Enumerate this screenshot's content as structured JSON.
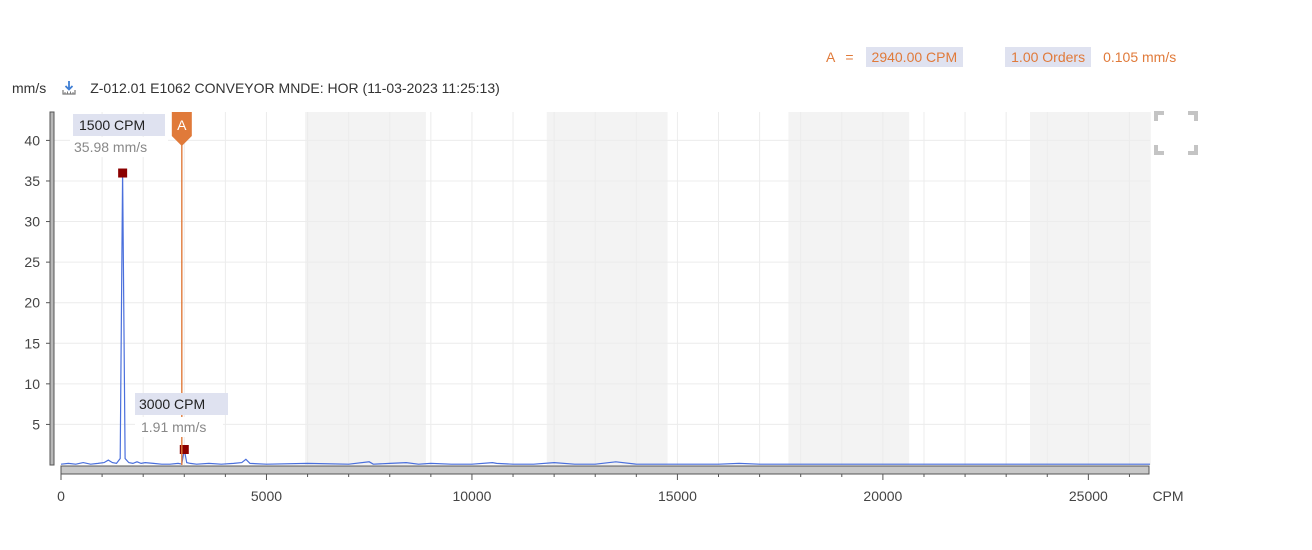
{
  "readout": {
    "cursor_label": "A",
    "equals": "=",
    "frequency": "2940.00 CPM",
    "orders": "1.00 Orders",
    "amplitude": "0.105 mm/s"
  },
  "header": {
    "unit": "mm/s",
    "download_icon": "download-chart-icon",
    "title": "Z-012.01  E1062 CONVEYOR MNDE: HOR (11-03-2023 11:25:13)"
  },
  "fullscreen_icon": "fullscreen-icon",
  "colors": {
    "series": "#4a6fdc",
    "cursor": "#e07a3a",
    "peak_marker": "#8b0000",
    "band": "#f3f3f3",
    "label_bg": "#dfe2f0"
  },
  "chart_data": {
    "type": "line",
    "xlabel": "CPM",
    "ylabel": "mm/s",
    "xlim": [
      0,
      26500
    ],
    "ylim": [
      0,
      43.5
    ],
    "x_ticks": [
      0,
      5000,
      10000,
      15000,
      20000,
      25000
    ],
    "y_ticks": [
      5,
      10,
      15,
      20,
      25,
      30,
      35,
      40
    ],
    "grid": true,
    "shaded_bands": [
      [
        5940,
        8880
      ],
      [
        11820,
        14760
      ],
      [
        17700,
        20640
      ],
      [
        23580,
        26520
      ]
    ],
    "series": [
      {
        "x": [
          0,
          180,
          360,
          540,
          720,
          900,
          1050,
          1150,
          1250,
          1350,
          1440,
          1500,
          1560,
          1650,
          1750,
          1850,
          1950,
          2050,
          2250,
          2450,
          2650,
          2850,
          2940,
          3000,
          3060,
          3150,
          3300,
          3600,
          3900,
          4200,
          4400,
          4500,
          4600,
          5000,
          6000,
          7000,
          7500,
          7600,
          8000,
          8400,
          8700,
          9000,
          9500,
          10000,
          10500,
          10600,
          11000,
          11500,
          12000,
          12500,
          13000,
          13500,
          14000,
          15000,
          16000,
          16500,
          17000,
          18000,
          19000,
          19500,
          20000,
          21000,
          22000,
          23000,
          24000,
          25000,
          26000,
          26500
        ],
        "y": [
          0.1,
          0.2,
          0.1,
          0.3,
          0.1,
          0.2,
          0.3,
          0.6,
          0.3,
          0.2,
          0.8,
          35.98,
          0.8,
          0.3,
          0.2,
          0.4,
          0.2,
          0.3,
          0.2,
          0.1,
          0.1,
          0.2,
          0.105,
          1.91,
          0.3,
          0.2,
          0.1,
          0.2,
          0.1,
          0.2,
          0.3,
          0.7,
          0.2,
          0.1,
          0.2,
          0.1,
          0.4,
          0.1,
          0.2,
          0.3,
          0.1,
          0.2,
          0.1,
          0.1,
          0.3,
          0.2,
          0.1,
          0.1,
          0.3,
          0.1,
          0.1,
          0.4,
          0.1,
          0.1,
          0.1,
          0.2,
          0.1,
          0.1,
          0.1,
          0.1,
          0.1,
          0.1,
          0.1,
          0.1,
          0.1,
          0.1,
          0.1,
          0.1
        ]
      }
    ],
    "peaks": [
      {
        "x": 1500,
        "y": 35.98,
        "freq_label": "1500 CPM",
        "amp_label": "35.98 mm/s"
      },
      {
        "x": 3000,
        "y": 1.91,
        "freq_label": "3000 CPM",
        "amp_label": "1.91 mm/s"
      }
    ],
    "cursor": {
      "x": 2940,
      "label": "A"
    }
  }
}
